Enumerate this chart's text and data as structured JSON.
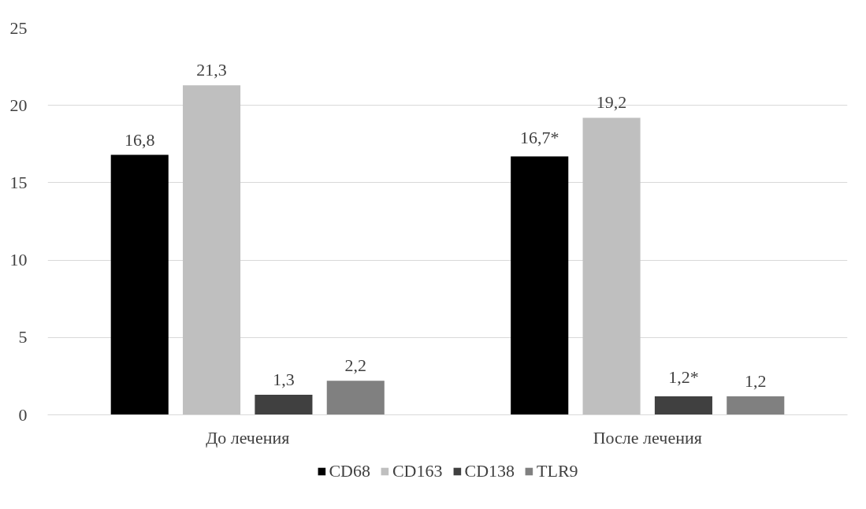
{
  "chart_data": {
    "type": "bar",
    "categories": [
      "До лечения",
      "После лечения"
    ],
    "series": [
      {
        "name": "CD68",
        "color": "#000000",
        "values": [
          16.8,
          16.7
        ],
        "value_labels": [
          "16,8",
          "16,7*"
        ]
      },
      {
        "name": "CD163",
        "color": "#bfbfbf",
        "values": [
          21.3,
          19.2
        ],
        "value_labels": [
          "21,3",
          "19,2"
        ]
      },
      {
        "name": "CD138",
        "color": "#404040",
        "values": [
          1.3,
          1.2
        ],
        "value_labels": [
          "1,3",
          "1,2*"
        ]
      },
      {
        "name": "TLR9",
        "color": "#808080",
        "values": [
          2.2,
          1.2
        ],
        "value_labels": [
          "2,2",
          "1,2"
        ]
      }
    ],
    "ylim": [
      0,
      25
    ],
    "yticks": [
      0,
      5,
      10,
      15,
      20,
      25
    ],
    "grid": "y",
    "legend": "bottom"
  }
}
